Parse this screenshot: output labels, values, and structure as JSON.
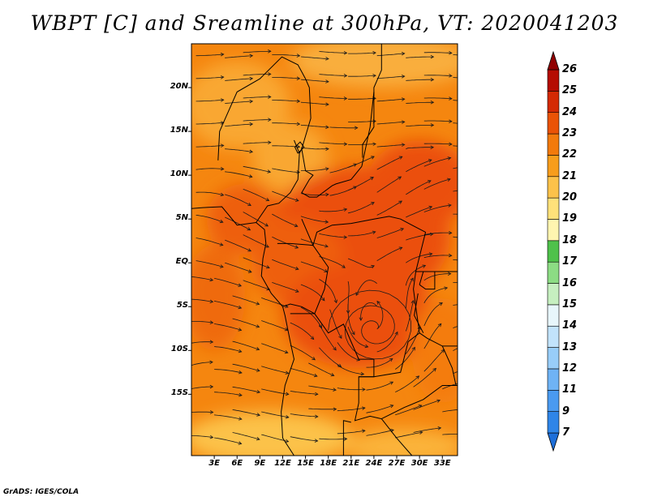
{
  "title": "WBPT [C] and Sreamline at 300hPa, VT: 2020041203",
  "footer": "GrADS: IGES/COLA",
  "map": {
    "variable": "Wet-bulb potential temperature",
    "units": "C",
    "level": "300hPa",
    "valid_time": "2020041203",
    "lon_range_deg": [
      0,
      35
    ],
    "lat_range_deg": [
      -22,
      25
    ],
    "lat_ticks": [
      "20N",
      "15N",
      "10N",
      "5N",
      "EQ",
      "5S",
      "10S",
      "15S"
    ],
    "lon_ticks": [
      "3E",
      "6E",
      "9E",
      "12E",
      "15E",
      "18E",
      "21E",
      "24E",
      "27E",
      "30E",
      "33E"
    ],
    "cyclonic_center": {
      "lon": 24,
      "lat": -7.5
    }
  },
  "colorbar": {
    "levels": [
      "7",
      "9",
      "11",
      "12",
      "13",
      "14",
      "15",
      "16",
      "17",
      "18",
      "19",
      "20",
      "21",
      "22",
      "23",
      "24",
      "25",
      "26"
    ],
    "colors": [
      "#1e6fd9",
      "#2f85e8",
      "#4a9af0",
      "#6fb3f5",
      "#98cdf9",
      "#c2e3fb",
      "#e8f6fb",
      "#c6efc0",
      "#8cdc84",
      "#4fc14b",
      "#fff5b0",
      "#ffe17a",
      "#fcc24a",
      "#f79d1c",
      "#f27a0c",
      "#ea5306",
      "#d42a04",
      "#b50c02",
      "#900000"
    ]
  },
  "colors": {
    "warm_base": "#f5860f",
    "hot_core": "#eb4f0a",
    "cool_band": "#fcc24a",
    "streamline": "#1a1a1a",
    "border": "#000000"
  }
}
